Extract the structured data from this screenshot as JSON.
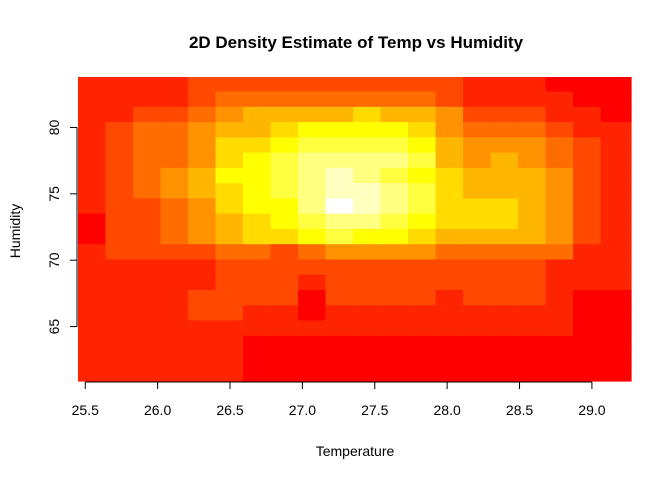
{
  "chart_data": {
    "type": "heatmap",
    "title": "2D Density Estimate of Temp vs Humidity",
    "xlabel": "Temperature",
    "ylabel": "Humidity",
    "xlim": [
      25.45,
      29.27
    ],
    "ylim": [
      60.9,
      83.8
    ],
    "x_ticks": [
      25.5,
      26.0,
      26.5,
      27.0,
      27.5,
      28.0,
      28.5,
      29.0
    ],
    "x_tick_labels": [
      "25.5",
      "26.0",
      "26.5",
      "27.0",
      "27.5",
      "28.0",
      "28.5",
      "29.0"
    ],
    "y_ticks": [
      65,
      70,
      75,
      80
    ],
    "y_tick_labels": [
      "65",
      "70",
      "75",
      "80"
    ],
    "x_edges": [
      25.45,
      25.64,
      25.83,
      26.02,
      26.21,
      26.4,
      26.59,
      26.78,
      26.97,
      27.16,
      27.35,
      27.54,
      27.73,
      27.92,
      28.11,
      28.3,
      28.49,
      28.68,
      28.87,
      29.06,
      29.27
    ],
    "y_edges": [
      60.9,
      62.05,
      63.2,
      64.35,
      65.5,
      66.65,
      67.8,
      68.95,
      70.1,
      71.25,
      72.4,
      73.55,
      74.7,
      75.85,
      77.0,
      78.15,
      79.3,
      80.45,
      81.6,
      82.75,
      83.8
    ],
    "color_scale": [
      "#ff0000",
      "#ff2400",
      "#ff4900",
      "#ff6d00",
      "#ff9200",
      "#ffb600",
      "#ffdb00",
      "#ffff00",
      "#ffff40",
      "#ffff80",
      "#ffffbf",
      "#ffffff"
    ],
    "z_levels": [
      [
        1,
        1,
        1,
        1,
        1,
        1,
        0,
        0,
        0,
        0,
        0,
        0,
        0,
        0,
        0,
        0,
        0,
        0,
        0,
        0
      ],
      [
        1,
        1,
        1,
        1,
        1,
        1,
        0,
        0,
        0,
        0,
        0,
        0,
        0,
        0,
        0,
        0,
        0,
        0,
        0,
        0
      ],
      [
        1,
        1,
        1,
        1,
        1,
        1,
        0,
        0,
        0,
        0,
        0,
        0,
        0,
        0,
        0,
        0,
        0,
        0,
        0,
        0
      ],
      [
        1,
        1,
        1,
        1,
        1,
        1,
        1,
        1,
        1,
        1,
        1,
        1,
        1,
        1,
        1,
        1,
        1,
        1,
        0,
        0
      ],
      [
        1,
        1,
        1,
        1,
        2,
        2,
        1,
        1,
        0,
        1,
        1,
        1,
        1,
        1,
        1,
        1,
        1,
        1,
        0,
        0
      ],
      [
        1,
        1,
        1,
        1,
        2,
        2,
        2,
        2,
        0,
        2,
        2,
        2,
        2,
        1,
        2,
        2,
        2,
        1,
        0,
        0
      ],
      [
        1,
        1,
        1,
        1,
        1,
        2,
        2,
        2,
        1,
        2,
        2,
        2,
        2,
        2,
        2,
        2,
        2,
        1,
        1,
        1
      ],
      [
        1,
        1,
        1,
        1,
        1,
        2,
        2,
        2,
        2,
        2,
        2,
        2,
        2,
        2,
        2,
        2,
        2,
        1,
        1,
        1
      ],
      [
        1,
        2,
        2,
        2,
        2,
        3,
        3,
        2,
        3,
        4,
        4,
        4,
        4,
        3,
        3,
        3,
        3,
        3,
        1,
        1
      ],
      [
        0,
        2,
        2,
        3,
        4,
        5,
        6,
        6,
        7,
        8,
        7,
        7,
        6,
        5,
        5,
        5,
        5,
        4,
        2,
        1
      ],
      [
        0,
        2,
        2,
        3,
        4,
        5,
        6,
        7,
        8,
        9,
        9,
        8,
        7,
        6,
        6,
        6,
        5,
        4,
        2,
        1
      ],
      [
        1,
        2,
        2,
        3,
        4,
        6,
        7,
        7,
        9,
        11,
        10,
        9,
        8,
        6,
        6,
        6,
        5,
        4,
        2,
        1
      ],
      [
        1,
        2,
        3,
        4,
        5,
        6,
        7,
        8,
        9,
        10,
        10,
        9,
        8,
        6,
        5,
        5,
        5,
        4,
        2,
        1
      ],
      [
        1,
        2,
        3,
        4,
        5,
        7,
        7,
        8,
        9,
        10,
        9,
        8,
        7,
        6,
        5,
        5,
        5,
        4,
        2,
        1
      ],
      [
        1,
        2,
        3,
        3,
        4,
        6,
        7,
        8,
        9,
        9,
        9,
        9,
        8,
        5,
        4,
        5,
        4,
        3,
        2,
        1
      ],
      [
        1,
        2,
        3,
        3,
        4,
        6,
        6,
        7,
        8,
        8,
        8,
        8,
        7,
        5,
        4,
        4,
        4,
        3,
        2,
        1
      ],
      [
        1,
        2,
        3,
        3,
        4,
        5,
        5,
        6,
        7,
        7,
        7,
        7,
        6,
        4,
        3,
        3,
        3,
        2,
        1,
        1
      ],
      [
        1,
        1,
        2,
        2,
        3,
        4,
        5,
        5,
        5,
        5,
        6,
        5,
        5,
        4,
        2,
        2,
        2,
        1,
        1,
        0
      ],
      [
        1,
        1,
        1,
        1,
        2,
        3,
        3,
        3,
        3,
        3,
        3,
        3,
        3,
        2,
        1,
        1,
        1,
        1,
        0,
        0
      ],
      [
        1,
        1,
        1,
        1,
        2,
        2,
        2,
        2,
        2,
        2,
        2,
        2,
        2,
        2,
        1,
        1,
        1,
        0,
        0,
        0
      ]
    ],
    "grid": false,
    "legend": "none"
  }
}
